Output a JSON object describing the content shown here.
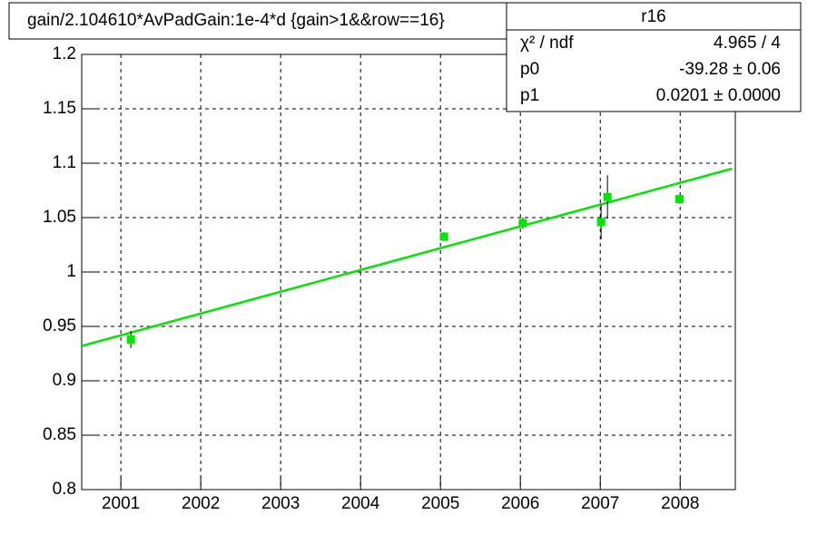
{
  "chart_data": {
    "type": "scatter",
    "title": "gain/2.104610*AvPadGain:1e-4*d  {gain>1&&row==16}",
    "series": [
      {
        "name": "r16",
        "color": "#00e600",
        "x": [
          2001.125,
          2005.045,
          2006.03,
          2007.01,
          2007.09,
          2007.99
        ],
        "values": [
          0.938,
          1.0325,
          1.045,
          1.046,
          1.069,
          1.067
        ],
        "yerr": [
          0.008,
          0.004,
          0.005,
          0.016,
          0.02,
          0.004
        ]
      }
    ],
    "fit": {
      "color": "#00e600",
      "x": [
        2000.51,
        2008.65
      ],
      "values": [
        0.932,
        1.095
      ]
    },
    "stats": {
      "title": "r16",
      "rows": [
        [
          "χ² / ndf",
          "4.965 / 4"
        ],
        [
          "p0",
          "-39.28 ± 0.06"
        ],
        [
          "p1",
          "0.0201 ± 0.0000"
        ]
      ]
    },
    "xlim": [
      2000.51,
      2008.69
    ],
    "xticks": [
      2001,
      2002,
      2003,
      2004,
      2005,
      2006,
      2007,
      2008
    ],
    "ylim": [
      0.8,
      1.2
    ],
    "yticks": [
      0.8,
      0.85,
      0.9,
      0.95,
      1,
      1.05,
      1.1,
      1.15,
      1.2
    ],
    "grid": true
  }
}
